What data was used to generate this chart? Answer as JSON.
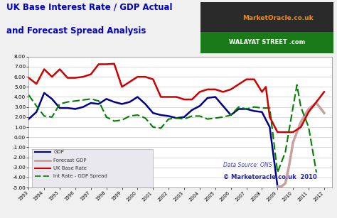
{
  "title_line1": "UK Base Interest Rate / GDP Actual",
  "title_line2": "and Forecast Spread Analysis",
  "ylim": [
    -5.0,
    8.0
  ],
  "yticks": [
    -5.0,
    -4.0,
    -3.0,
    -2.0,
    -1.0,
    0.0,
    1.0,
    2.0,
    3.0,
    4.0,
    5.0,
    6.0,
    7.0,
    8.0
  ],
  "xlim_start": 1993,
  "xlim_end": 2012.5,
  "bg_color": "#f0f0f0",
  "plot_bg": "#ffffff",
  "gdp_color": "#00008B",
  "forecast_gdp_color": "#c8a0a0",
  "base_rate_color": "#cc0000",
  "spread_color": "#008000",
  "copyright_text": "© Marketoracle.co.uk  2010",
  "datasource_text": "Data Source: ONS",
  "years_gdp": [
    1993,
    1993.5,
    1994,
    1994.5,
    1995,
    1995.5,
    1996,
    1996.5,
    1997,
    1997.5,
    1998,
    1998.5,
    1999,
    1999.5,
    2000,
    2000.5,
    2001,
    2001.5,
    2002,
    2002.5,
    2003,
    2003.5,
    2004,
    2004.5,
    2005,
    2005.5,
    2006,
    2006.5,
    2007,
    2007.5,
    2008,
    2008.5,
    2009,
    2009.25
  ],
  "vals_gdp": [
    1.8,
    2.5,
    4.4,
    3.8,
    2.9,
    2.9,
    2.8,
    3.0,
    3.4,
    3.3,
    3.8,
    3.5,
    3.3,
    3.5,
    4.0,
    3.3,
    2.4,
    2.2,
    2.1,
    1.9,
    2.0,
    2.7,
    3.1,
    3.9,
    4.0,
    3.1,
    2.2,
    2.8,
    2.8,
    2.6,
    2.5,
    1.0,
    -4.9,
    -4.9
  ],
  "years_forecast_gdp": [
    2009.0,
    2009.25,
    2009.5,
    2009.75,
    2010,
    2010.5,
    2011,
    2011.5,
    2012
  ],
  "vals_forecast_gdp": [
    -4.9,
    -4.9,
    -4.6,
    -2.8,
    -0.5,
    1.5,
    2.8,
    3.4,
    2.4
  ],
  "years_base_rate": [
    1993,
    1993.5,
    1994,
    1994.5,
    1995,
    1995.5,
    1996,
    1996.5,
    1997,
    1997.5,
    1998,
    1998.5,
    1999,
    1999.5,
    2000,
    2000.5,
    2001,
    2001.5,
    2002,
    2002.5,
    2003,
    2003.5,
    2004,
    2004.5,
    2005,
    2005.5,
    2006,
    2006.5,
    2007,
    2007.5,
    2008,
    2008.25,
    2008.5,
    2009,
    2009.25,
    2009.5,
    2010,
    2010.5,
    2011,
    2011.5,
    2012
  ],
  "vals_base_rate": [
    5.9,
    5.3,
    6.75,
    6.0,
    6.75,
    5.9,
    5.9,
    6.0,
    6.25,
    7.25,
    7.25,
    7.3,
    5.0,
    5.5,
    6.0,
    6.0,
    5.75,
    4.0,
    4.0,
    4.0,
    3.75,
    3.75,
    4.5,
    4.75,
    4.75,
    4.5,
    4.75,
    5.25,
    5.75,
    5.75,
    4.5,
    5.0,
    2.0,
    0.5,
    0.5,
    0.5,
    0.5,
    1.0,
    2.5,
    3.5,
    4.5
  ],
  "years_spread": [
    1993,
    1993.5,
    1994,
    1994.5,
    1995,
    1995.5,
    1996,
    1996.5,
    1997,
    1997.5,
    1998,
    1998.5,
    1999,
    1999.5,
    2000,
    2000.5,
    2001,
    2001.5,
    2002,
    2002.5,
    2003,
    2003.5,
    2004,
    2004.5,
    2005,
    2005.5,
    2006,
    2006.5,
    2007,
    2007.5,
    2008,
    2008.5,
    2009,
    2009.5,
    2010,
    2010.25,
    2010.5,
    2011,
    2011.5
  ],
  "vals_spread": [
    4.2,
    3.1,
    2.1,
    2.0,
    3.3,
    3.5,
    3.6,
    3.7,
    3.8,
    3.6,
    2.0,
    1.6,
    1.7,
    2.1,
    2.2,
    1.9,
    1.0,
    0.9,
    1.8,
    1.9,
    1.8,
    2.1,
    2.1,
    1.8,
    1.9,
    2.0,
    2.2,
    3.0,
    2.8,
    3.0,
    2.9,
    2.9,
    -3.5,
    -1.5,
    3.0,
    5.2,
    3.0,
    1.0,
    -3.5
  ],
  "xtick_labels": [
    "1993",
    "1994",
    "1995",
    "1996",
    "1997",
    "1998",
    "1999",
    "2000",
    "2001",
    "2002",
    "2003",
    "2004",
    "2005",
    "2006",
    "2007",
    "2008",
    "2009",
    "2010",
    "2011",
    "2012"
  ],
  "xtick_positions": [
    1993,
    1994,
    1995,
    1996,
    1997,
    1998,
    1999,
    2000,
    2001,
    2002,
    2003,
    2004,
    2005,
    2006,
    2007,
    2008,
    2009,
    2010,
    2011,
    2012
  ]
}
